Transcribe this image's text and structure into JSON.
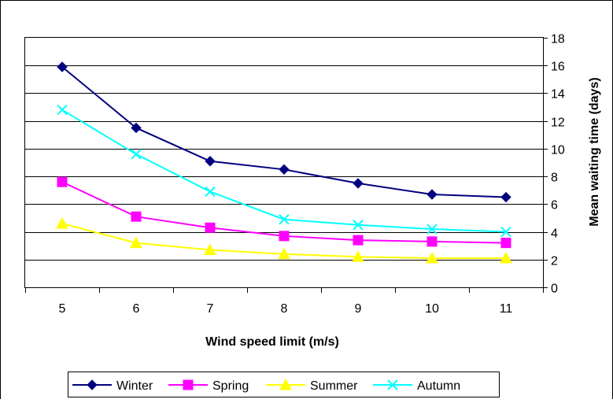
{
  "chart_data": {
    "type": "line",
    "xlabel": "Wind speed limit (m/s)",
    "ylabel": "Mean waiting time (days)",
    "ylim": [
      0,
      18
    ],
    "y_ticks": [
      0,
      2,
      4,
      6,
      8,
      10,
      12,
      14,
      16,
      18
    ],
    "y_axis_side": "right",
    "categories": [
      "5",
      "6",
      "7",
      "8",
      "9",
      "10",
      "11"
    ],
    "grid": "horizontal",
    "legend_position": "bottom",
    "series": [
      {
        "name": "Winter",
        "color": "#000080",
        "marker": "diamond",
        "values": [
          15.9,
          11.5,
          9.1,
          8.5,
          7.5,
          6.7,
          6.5
        ]
      },
      {
        "name": "Spring",
        "color": "#ff00ff",
        "marker": "square",
        "values": [
          7.6,
          5.1,
          4.3,
          3.7,
          3.4,
          3.3,
          3.2
        ]
      },
      {
        "name": "Summer",
        "color": "#ffff00",
        "marker": "triangle",
        "values": [
          4.6,
          3.2,
          2.7,
          2.4,
          2.2,
          2.1,
          2.1
        ]
      },
      {
        "name": "Autumn",
        "color": "#00ffff",
        "marker": "x",
        "values": [
          12.8,
          9.6,
          6.9,
          4.9,
          4.5,
          4.2,
          4.0
        ]
      }
    ]
  }
}
